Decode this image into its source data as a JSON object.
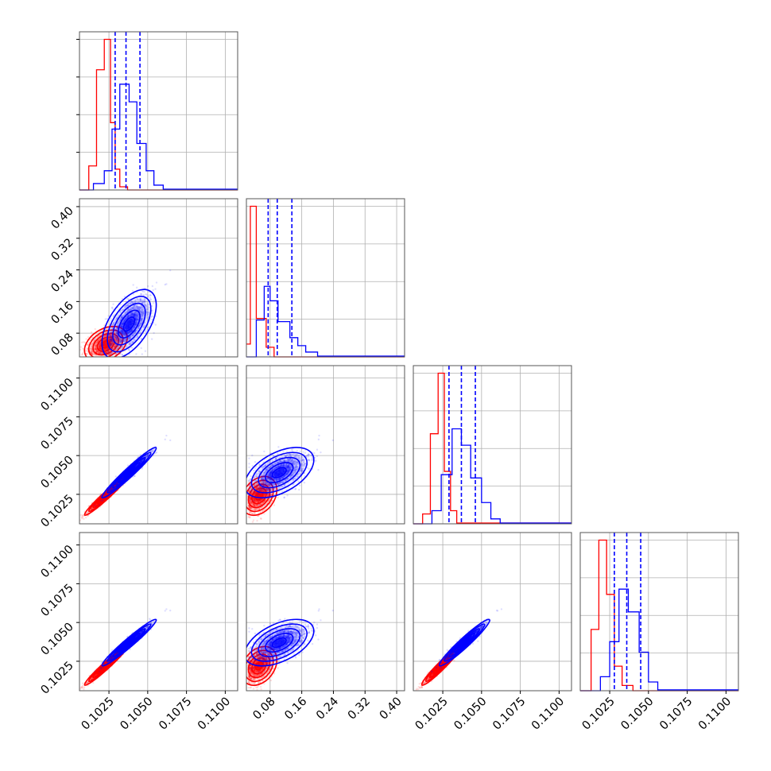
{
  "colors": {
    "red": "#ff0000",
    "blue": "#0000ff",
    "grid": "#b0b0b0",
    "frame": "#555555"
  },
  "chart_data": {
    "type": "corner",
    "grid": true,
    "series": [
      {
        "color": "#ff0000"
      },
      {
        "color": "#0000ff"
      }
    ],
    "parameters": [
      {
        "range": [
          0.1006,
          0.1108
        ],
        "ticks": [
          0.1025,
          0.105,
          0.1075,
          0.11
        ],
        "tick_labels": [
          "0.1025",
          "0.1050",
          "0.1075",
          "0.1100"
        ]
      },
      {
        "range": [
          0.02,
          0.42
        ],
        "ticks": [
          0.08,
          0.16,
          0.24,
          0.32,
          0.4
        ],
        "tick_labels": [
          "0.08",
          "0.16",
          "0.24",
          "0.32",
          "0.40"
        ]
      },
      {
        "range": [
          0.1006,
          0.1108
        ],
        "ticks": [
          0.1025,
          0.105,
          0.1075,
          0.11
        ],
        "tick_labels": [
          "0.1025",
          "0.1050",
          "0.1075",
          "0.1100"
        ]
      },
      {
        "range": [
          0.1006,
          0.1108
        ],
        "ticks": [
          0.1025,
          0.105,
          0.1075,
          0.11
        ],
        "tick_labels": [
          "0.1025",
          "0.1050",
          "0.1075",
          "0.1100"
        ]
      }
    ],
    "marginals": [
      {
        "red": [
          [
            0.1006,
            0.1012,
            0
          ],
          [
            0.1012,
            0.1017,
            0.15
          ],
          [
            0.1017,
            0.1022,
            0.75
          ],
          [
            0.1022,
            0.1026,
            0.94
          ],
          [
            0.1026,
            0.1029,
            0.42
          ],
          [
            0.1029,
            0.1032,
            0.13
          ],
          [
            0.1032,
            0.1037,
            0.02
          ],
          [
            0.1037,
            0.1108,
            0
          ]
        ],
        "blue": [
          [
            0.1006,
            0.1015,
            0
          ],
          [
            0.1015,
            0.1022,
            0.04
          ],
          [
            0.1022,
            0.1027,
            0.12
          ],
          [
            0.1027,
            0.1032,
            0.38
          ],
          [
            0.1032,
            0.1038,
            0.66
          ],
          [
            0.1038,
            0.1043,
            0.55
          ],
          [
            0.1043,
            0.1049,
            0.29
          ],
          [
            0.1049,
            0.1054,
            0.12
          ],
          [
            0.1054,
            0.106,
            0.03
          ],
          [
            0.106,
            0.1108,
            0.005
          ]
        ],
        "quantiles": [
          0.1029,
          0.1036,
          0.1045
        ]
      },
      {
        "red": [
          [
            0.02,
            0.03,
            0.08
          ],
          [
            0.03,
            0.045,
            0.94
          ],
          [
            0.045,
            0.07,
            0.24
          ],
          [
            0.07,
            0.09,
            0.06
          ],
          [
            0.09,
            0.42,
            0
          ]
        ],
        "blue": [
          [
            0.02,
            0.045,
            0
          ],
          [
            0.045,
            0.065,
            0.23
          ],
          [
            0.065,
            0.08,
            0.44
          ],
          [
            0.08,
            0.1,
            0.35
          ],
          [
            0.1,
            0.13,
            0.22
          ],
          [
            0.13,
            0.15,
            0.12
          ],
          [
            0.15,
            0.17,
            0.07
          ],
          [
            0.17,
            0.2,
            0.03
          ],
          [
            0.2,
            0.42,
            0.005
          ]
        ],
        "quantiles": [
          0.075,
          0.098,
          0.135
        ]
      },
      {
        "red": [
          [
            0.1006,
            0.1012,
            0
          ],
          [
            0.1012,
            0.1017,
            0.06
          ],
          [
            0.1017,
            0.1022,
            0.55
          ],
          [
            0.1022,
            0.1026,
            0.92
          ],
          [
            0.1026,
            0.103,
            0.32
          ],
          [
            0.103,
            0.1034,
            0.08
          ],
          [
            0.1034,
            0.1108,
            0.005
          ]
        ],
        "blue": [
          [
            0.1006,
            0.1018,
            0
          ],
          [
            0.1018,
            0.1024,
            0.08
          ],
          [
            0.1024,
            0.1031,
            0.3
          ],
          [
            0.1031,
            0.1037,
            0.58
          ],
          [
            0.1037,
            0.1043,
            0.48
          ],
          [
            0.1043,
            0.105,
            0.28
          ],
          [
            0.105,
            0.1056,
            0.13
          ],
          [
            0.1056,
            0.1062,
            0.03
          ],
          [
            0.1062,
            0.1108,
            0.005
          ]
        ],
        "quantiles": [
          0.1029,
          0.1037,
          0.1046
        ]
      },
      {
        "red": [
          [
            0.1006,
            0.1013,
            0
          ],
          [
            0.1013,
            0.1018,
            0.35
          ],
          [
            0.1018,
            0.1023,
            0.86
          ],
          [
            0.1023,
            0.1028,
            0.55
          ],
          [
            0.1028,
            0.1033,
            0.14
          ],
          [
            0.1033,
            0.104,
            0.03
          ],
          [
            0.104,
            0.1108,
            0
          ]
        ],
        "blue": [
          [
            0.1006,
            0.1019,
            0
          ],
          [
            0.1019,
            0.1025,
            0.08
          ],
          [
            0.1025,
            0.1031,
            0.28
          ],
          [
            0.1031,
            0.1037,
            0.58
          ],
          [
            0.1037,
            0.1044,
            0.45
          ],
          [
            0.1044,
            0.105,
            0.22
          ],
          [
            0.105,
            0.1056,
            0.05
          ],
          [
            0.1056,
            0.1108,
            0.005
          ]
        ],
        "quantiles": [
          0.1028,
          0.1036,
          0.1045
        ]
      }
    ],
    "samples": {
      "red": {
        "mean": [
          0.1023,
          0.052,
          0.1024,
          0.1022
        ],
        "sd": [
          0.00055,
          0.018,
          0.0005,
          0.0005
        ],
        "corr": [
          [
            1,
            0.35,
            0.97,
            0.97
          ],
          [
            0.35,
            1,
            0.3,
            0.3
          ],
          [
            0.97,
            0.3,
            1,
            0.96
          ],
          [
            0.97,
            0.3,
            0.96,
            1
          ]
        ]
      },
      "blue": {
        "mean": [
          0.1038,
          0.103,
          0.1039,
          0.1037
        ],
        "sd": [
          0.0007,
          0.035,
          0.00065,
          0.0006
        ],
        "corr": [
          [
            1,
            0.55,
            0.97,
            0.97
          ],
          [
            0.55,
            1,
            0.5,
            0.5
          ],
          [
            0.97,
            0.5,
            1,
            0.96
          ],
          [
            0.97,
            0.5,
            0.96,
            1
          ]
        ]
      }
    }
  }
}
